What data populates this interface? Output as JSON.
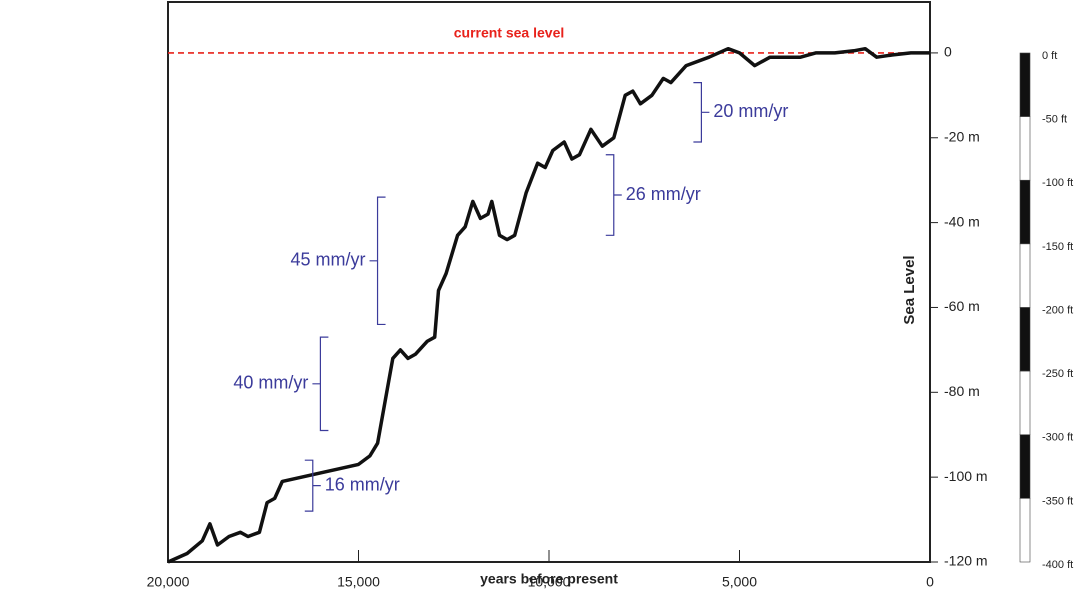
{
  "chart_data": {
    "type": "line",
    "x_label": "years before present",
    "y_label": "Sea Level",
    "color": "#111111",
    "x": [
      20000,
      19500,
      19100,
      18900,
      18700,
      18400,
      18100,
      17900,
      17600,
      17400,
      17200,
      17000,
      16500,
      16000,
      15500,
      15000,
      14700,
      14500,
      14300,
      14100,
      13900,
      13700,
      13500,
      13200,
      13000,
      12900,
      12700,
      12400,
      12200,
      12000,
      11800,
      11600,
      11500,
      11300,
      11100,
      10900,
      10600,
      10300,
      10100,
      9900,
      9600,
      9400,
      9200,
      8900,
      8600,
      8300,
      8000,
      7800,
      7600,
      7300,
      7000,
      6800,
      6400,
      5800,
      5300,
      5000,
      4600,
      4200,
      3800,
      3400,
      3000,
      2500,
      2000,
      1700,
      1400,
      1000,
      500,
      0
    ],
    "values": [
      -120,
      -118,
      -115,
      -111,
      -116,
      -114,
      -113,
      -114,
      -113,
      -106,
      -105,
      -101,
      -100,
      -99,
      -98,
      -97,
      -95,
      -92,
      -82,
      -72,
      -70,
      -72,
      -71,
      -68,
      -67,
      -56,
      -52,
      -43,
      -41,
      -35,
      -39,
      -38,
      -35,
      -43,
      -44,
      -43,
      -33,
      -26,
      -27,
      -23,
      -21,
      -25,
      -24,
      -18,
      -22,
      -20,
      -10,
      -9,
      -12,
      -10,
      -6,
      -7,
      -3,
      -1,
      1,
      0,
      -3,
      -1,
      -1,
      -1,
      0,
      0,
      0.5,
      1,
      -1,
      -0.5,
      0,
      0
    ],
    "xlim": [
      20000,
      0
    ],
    "ylim": [
      -120,
      12
    ],
    "xticks": [
      {
        "value": 20000,
        "label": "20,000"
      },
      {
        "value": 15000,
        "label": "15,000"
      },
      {
        "value": 10000,
        "label": "10,000"
      },
      {
        "value": 5000,
        "label": "5,000"
      },
      0
    ],
    "yticks": [
      0,
      {
        "value": -20,
        "label": "-20 m"
      },
      {
        "value": -40,
        "label": "-40 m"
      },
      {
        "value": -60,
        "label": "-60 m"
      },
      {
        "value": -80,
        "label": "-80 m"
      },
      {
        "value": -100,
        "label": "-100 m"
      },
      {
        "value": -120,
        "label": "-120 m"
      }
    ],
    "reference_line": {
      "value": 0,
      "label": "current sea level",
      "color": "#e8221b"
    },
    "annotation_color": "#3b3b9b",
    "annotations": [
      {
        "text": "16 mm/yr",
        "x": 16200,
        "range": [
          -108,
          -96
        ],
        "side": "right"
      },
      {
        "text": "40 mm/yr",
        "x": 16000,
        "range": [
          -89,
          -67
        ],
        "side": "left"
      },
      {
        "text": "45 mm/yr",
        "x": 14500,
        "range": [
          -64,
          -34
        ],
        "side": "left"
      },
      {
        "text": "26 mm/yr",
        "x": 8300,
        "range": [
          -43,
          -24
        ],
        "side": "right"
      },
      {
        "text": "20 mm/yr",
        "x": 6000,
        "range": [
          -21,
          -7
        ],
        "side": "right"
      }
    ],
    "ft_scale": {
      "lim": [
        -400,
        0
      ],
      "ticks": [
        {
          "value": 0,
          "label": "0 ft"
        },
        {
          "value": -50,
          "label": "-50 ft"
        },
        {
          "value": -100,
          "label": "-100 ft"
        },
        {
          "value": -150,
          "label": "-150 ft"
        },
        {
          "value": -200,
          "label": "-200 ft"
        },
        {
          "value": -250,
          "label": "-250 ft"
        },
        {
          "value": -300,
          "label": "-300 ft"
        },
        {
          "value": -350,
          "label": "-350 ft"
        },
        {
          "value": -400,
          "label": "-400 ft"
        }
      ]
    }
  }
}
